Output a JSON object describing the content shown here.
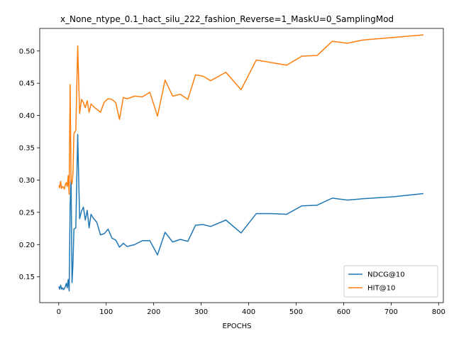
{
  "chart_data": {
    "type": "line",
    "title": "x_None_ntype_0.1_hact_silu_222_fashion_Reverse=1_MaskU=0_SamplingMod",
    "xlabel": "EPOCHS",
    "ylabel": "",
    "xlim": [
      -40,
      810
    ],
    "ylim": [
      0.11,
      0.535
    ],
    "xticks": [
      0,
      100,
      200,
      300,
      400,
      500,
      600,
      700,
      800
    ],
    "yticks": [
      0.15,
      0.2,
      0.25,
      0.3,
      0.35,
      0.4,
      0.45,
      0.5
    ],
    "legend": "bottom-right",
    "grid": false,
    "series": [
      {
        "name": "NDCG@10",
        "color": "#1f77b4",
        "x": [
          0,
          2,
          4,
          6,
          8,
          10,
          12,
          14,
          16,
          18,
          20,
          22,
          24,
          26,
          28,
          30,
          32,
          36,
          40,
          44,
          48,
          52,
          56,
          60,
          64,
          68,
          72,
          76,
          80,
          88,
          96,
          104,
          112,
          120,
          128,
          136,
          144,
          160,
          176,
          192,
          208,
          224,
          240,
          256,
          272,
          288,
          304,
          320,
          352,
          384,
          416,
          448,
          480,
          512,
          544,
          576,
          608,
          640,
          704,
          768
        ],
        "y": [
          0.135,
          0.131,
          0.137,
          0.131,
          0.133,
          0.13,
          0.132,
          0.135,
          0.14,
          0.133,
          0.146,
          0.128,
          0.26,
          0.3,
          0.141,
          0.17,
          0.224,
          0.226,
          0.371,
          0.24,
          0.252,
          0.258,
          0.238,
          0.253,
          0.226,
          0.247,
          0.242,
          0.238,
          0.235,
          0.215,
          0.217,
          0.224,
          0.21,
          0.207,
          0.196,
          0.202,
          0.197,
          0.2,
          0.206,
          0.206,
          0.184,
          0.219,
          0.204,
          0.208,
          0.205,
          0.23,
          0.231,
          0.228,
          0.238,
          0.218,
          0.248,
          0.248,
          0.247,
          0.26,
          0.261,
          0.272,
          0.269,
          0.271,
          0.274,
          0.279
        ]
      },
      {
        "name": "HIT@10",
        "color": "#ff7f0e",
        "x": [
          0,
          2,
          4,
          6,
          8,
          10,
          12,
          14,
          16,
          18,
          20,
          22,
          24,
          26,
          28,
          30,
          32,
          36,
          40,
          44,
          48,
          52,
          56,
          60,
          64,
          68,
          72,
          76,
          80,
          88,
          96,
          104,
          112,
          120,
          128,
          136,
          144,
          160,
          176,
          192,
          208,
          224,
          240,
          256,
          272,
          288,
          304,
          320,
          352,
          384,
          416,
          448,
          480,
          512,
          544,
          576,
          608,
          640,
          704,
          768
        ],
        "y": [
          0.292,
          0.288,
          0.298,
          0.287,
          0.29,
          0.289,
          0.286,
          0.293,
          0.296,
          0.29,
          0.307,
          0.278,
          0.448,
          0.3,
          0.294,
          0.31,
          0.372,
          0.377,
          0.508,
          0.403,
          0.425,
          0.42,
          0.412,
          0.423,
          0.405,
          0.418,
          0.415,
          0.412,
          0.41,
          0.405,
          0.421,
          0.426,
          0.425,
          0.42,
          0.394,
          0.428,
          0.426,
          0.43,
          0.429,
          0.436,
          0.399,
          0.455,
          0.43,
          0.433,
          0.425,
          0.463,
          0.461,
          0.454,
          0.467,
          0.44,
          0.486,
          0.482,
          0.478,
          0.492,
          0.493,
          0.515,
          0.512,
          0.517,
          0.521,
          0.525
        ]
      }
    ]
  }
}
